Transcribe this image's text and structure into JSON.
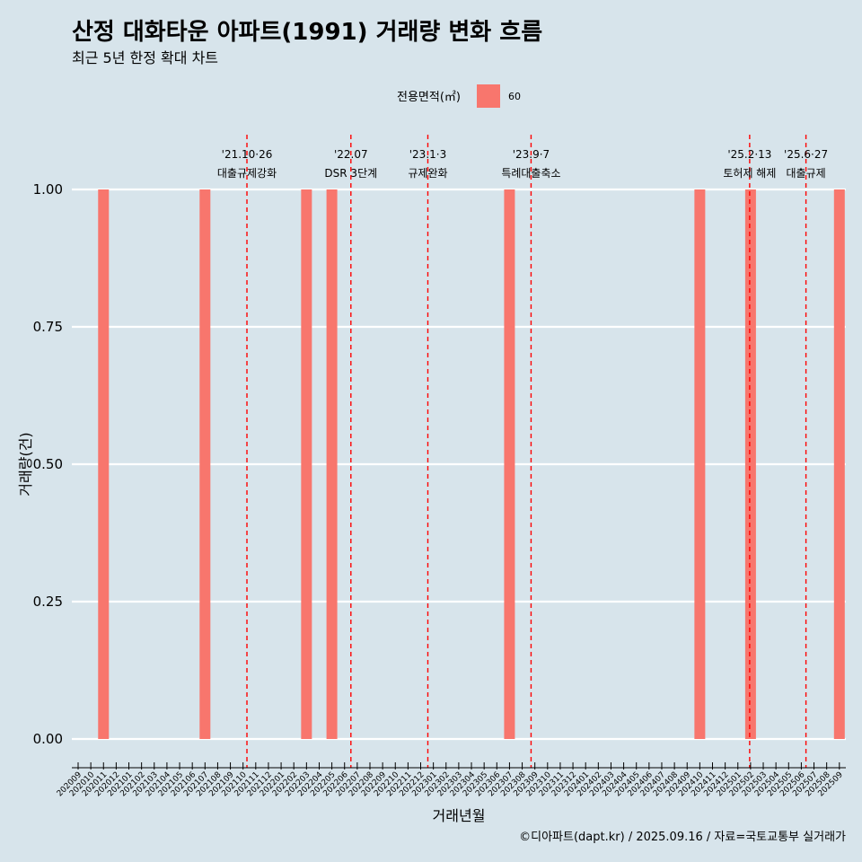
{
  "title": "산정 대화타운 아파트(1991) 거래량 변화 흐름",
  "subtitle": "최근 5년 한정 확대 차트",
  "caption": "©디아파트(dapt.kr) / 2025.09.16 / 자료=국토교통부 실거래가",
  "colors": {
    "background": "#d7e4eb",
    "bar": "#f8766d",
    "event_line": "#ff0000",
    "grid": "#ffffff"
  },
  "chart_data": {
    "type": "bar",
    "title": "산정 대화타운 아파트(1991) 거래량 변화 흐름",
    "subtitle": "최근 5년 한정 확대 차트",
    "xlabel": "거래년월",
    "ylabel": "거래량(건)",
    "ylim": [
      0,
      1
    ],
    "yticks": [
      "0.00",
      "0.25",
      "0.50",
      "0.75",
      "1.00"
    ],
    "grid": true,
    "legend": {
      "title": "전용면적(㎡)",
      "position": "top",
      "items": [
        "60"
      ]
    },
    "categories": [
      "202009",
      "202010",
      "202011",
      "202012",
      "202101",
      "202102",
      "202103",
      "202104",
      "202105",
      "202106",
      "202107",
      "202108",
      "202109",
      "202110",
      "202111",
      "202112",
      "202201",
      "202202",
      "202203",
      "202204",
      "202205",
      "202206",
      "202207",
      "202208",
      "202209",
      "202210",
      "202211",
      "202212",
      "202301",
      "202302",
      "202303",
      "202304",
      "202305",
      "202306",
      "202307",
      "202308",
      "202309",
      "202310",
      "202311",
      "202312",
      "202401",
      "202402",
      "202403",
      "202404",
      "202405",
      "202406",
      "202407",
      "202408",
      "202409",
      "202410",
      "202411",
      "202412",
      "202501",
      "202502",
      "202503",
      "202504",
      "202505",
      "202506",
      "202507",
      "202508",
      "202509"
    ],
    "series": [
      {
        "name": "60",
        "values": [
          {
            "x": "202011",
            "y": 1
          },
          {
            "x": "202107",
            "y": 1
          },
          {
            "x": "202203",
            "y": 1
          },
          {
            "x": "202205",
            "y": 1
          },
          {
            "x": "202307",
            "y": 1
          },
          {
            "x": "202410",
            "y": 1
          },
          {
            "x": "202502",
            "y": 1
          },
          {
            "x": "202509",
            "y": 1
          }
        ]
      }
    ],
    "events": [
      {
        "date": "2021-10-26",
        "line1": "'21.10·26",
        "line2": "대출규제강화"
      },
      {
        "date": "2022-07-01",
        "line1": "'22.07",
        "line2": "DSR 3단계"
      },
      {
        "date": "2023-01-03",
        "line1": "'23.1·3",
        "line2": "규제완화"
      },
      {
        "date": "2023-09-07",
        "line1": "'23.9·7",
        "line2": "특례대출축소"
      },
      {
        "date": "2025-02-13",
        "line1": "'25.2·13",
        "line2": "토허제 해제"
      },
      {
        "date": "2025-06-27",
        "line1": "'25.6·27",
        "line2": "대출규제"
      }
    ]
  }
}
